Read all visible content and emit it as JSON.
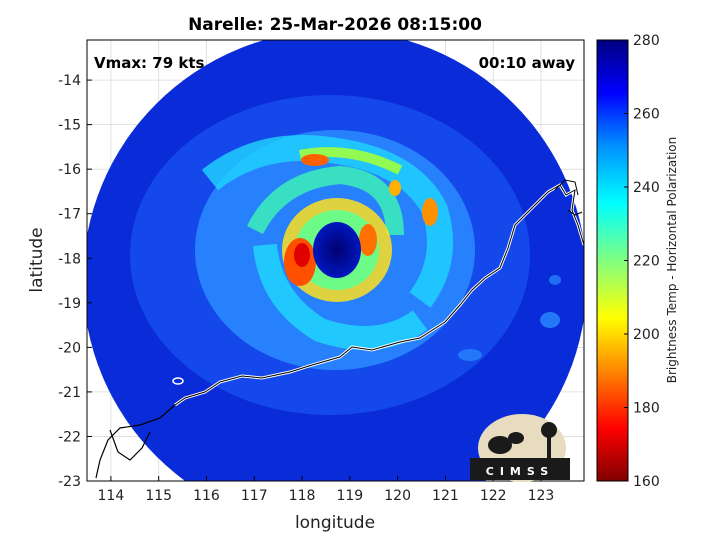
{
  "title": "Narelle: 25-Mar-2026 08:15:00",
  "vmax": "Vmax: 79 kts",
  "time_away": "00:10 away",
  "logo_text": "CIMSS",
  "axes": {
    "xlabel": "longitude",
    "ylabel": "latitude",
    "xlim": [
      113.5,
      123.9
    ],
    "ylim": [
      -23,
      -13.1
    ],
    "xticks": [
      "114",
      "115",
      "116",
      "117",
      "118",
      "119",
      "120",
      "121",
      "122",
      "123"
    ],
    "yticks": [
      "-14",
      "-15",
      "-16",
      "-17",
      "-18",
      "-19",
      "-20",
      "-21",
      "-22",
      "-23"
    ],
    "grid": true
  },
  "colorbar": {
    "label": "Brightness Temp - Horizontal Polarization",
    "ticks": [
      "280",
      "260",
      "240",
      "220",
      "200",
      "180",
      "160"
    ],
    "range": [
      160,
      280
    ]
  },
  "colors": {
    "cold": "#0000a8",
    "swath_bg": "#0a2bd8",
    "coast": "#ffffff",
    "outside_coast": "#000000"
  },
  "chart_data": {
    "type": "heatmap",
    "title": "Narelle: 25-Mar-2026 08:15:00",
    "xlabel": "longitude",
    "ylabel": "latitude",
    "xlim": [
      113.5,
      123.9
    ],
    "ylim": [
      -23,
      -13.1
    ],
    "value_label": "Brightness Temp - Horizontal Polarization",
    "value_range": [
      160,
      280
    ],
    "storm_center": {
      "lon": 118.9,
      "lat": -17.9
    }
  }
}
